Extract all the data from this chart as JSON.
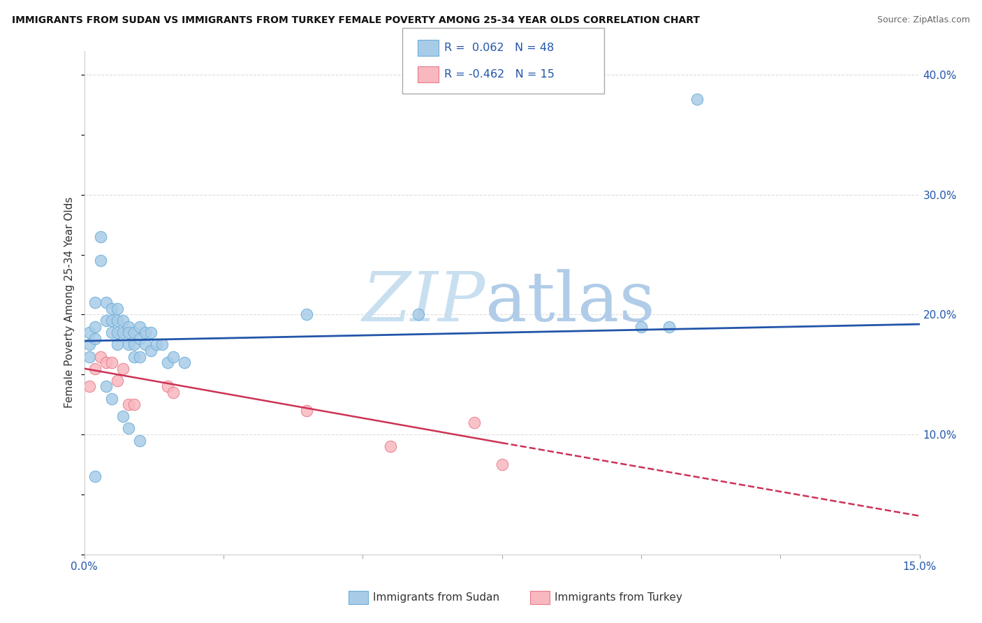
{
  "title": "IMMIGRANTS FROM SUDAN VS IMMIGRANTS FROM TURKEY FEMALE POVERTY AMONG 25-34 YEAR OLDS CORRELATION CHART",
  "source": "Source: ZipAtlas.com",
  "ylabel": "Female Poverty Among 25-34 Year Olds",
  "xlim": [
    0.0,
    0.15
  ],
  "ylim": [
    0.0,
    0.42
  ],
  "xticks": [
    0.0,
    0.025,
    0.05,
    0.075,
    0.1,
    0.125,
    0.15
  ],
  "yticks": [
    0.1,
    0.2,
    0.3,
    0.4
  ],
  "ytick_labels": [
    "10.0%",
    "20.0%",
    "30.0%",
    "40.0%"
  ],
  "xtick_labels": [
    "0.0%",
    "",
    "",
    "",
    "",
    "",
    "15.0%"
  ],
  "sudan_color": "#a8cce8",
  "sudan_edge_color": "#6baed6",
  "turkey_color": "#f9b8bf",
  "turkey_edge_color": "#e87a8a",
  "sudan_line_color": "#2255aa",
  "turkey_line_color": "#cc3355",
  "sudan_R": 0.062,
  "sudan_N": 48,
  "turkey_R": -0.462,
  "turkey_N": 15,
  "sudan_points": [
    [
      0.001,
      0.185
    ],
    [
      0.001,
      0.175
    ],
    [
      0.001,
      0.165
    ],
    [
      0.002,
      0.21
    ],
    [
      0.002,
      0.19
    ],
    [
      0.002,
      0.18
    ],
    [
      0.003,
      0.265
    ],
    [
      0.003,
      0.245
    ],
    [
      0.004,
      0.21
    ],
    [
      0.004,
      0.195
    ],
    [
      0.005,
      0.205
    ],
    [
      0.005,
      0.195
    ],
    [
      0.005,
      0.185
    ],
    [
      0.006,
      0.205
    ],
    [
      0.006,
      0.195
    ],
    [
      0.006,
      0.185
    ],
    [
      0.006,
      0.175
    ],
    [
      0.007,
      0.195
    ],
    [
      0.007,
      0.185
    ],
    [
      0.008,
      0.19
    ],
    [
      0.008,
      0.185
    ],
    [
      0.008,
      0.175
    ],
    [
      0.009,
      0.185
    ],
    [
      0.009,
      0.175
    ],
    [
      0.009,
      0.165
    ],
    [
      0.01,
      0.19
    ],
    [
      0.01,
      0.18
    ],
    [
      0.01,
      0.165
    ],
    [
      0.011,
      0.185
    ],
    [
      0.011,
      0.175
    ],
    [
      0.012,
      0.185
    ],
    [
      0.012,
      0.17
    ],
    [
      0.013,
      0.175
    ],
    [
      0.014,
      0.175
    ],
    [
      0.015,
      0.16
    ],
    [
      0.016,
      0.165
    ],
    [
      0.018,
      0.16
    ],
    [
      0.04,
      0.2
    ],
    [
      0.06,
      0.2
    ],
    [
      0.1,
      0.19
    ],
    [
      0.105,
      0.19
    ],
    [
      0.11,
      0.38
    ],
    [
      0.002,
      0.065
    ],
    [
      0.004,
      0.14
    ],
    [
      0.005,
      0.13
    ],
    [
      0.007,
      0.115
    ],
    [
      0.008,
      0.105
    ],
    [
      0.01,
      0.095
    ]
  ],
  "turkey_points": [
    [
      0.001,
      0.14
    ],
    [
      0.002,
      0.155
    ],
    [
      0.003,
      0.165
    ],
    [
      0.004,
      0.16
    ],
    [
      0.005,
      0.16
    ],
    [
      0.006,
      0.145
    ],
    [
      0.007,
      0.155
    ],
    [
      0.008,
      0.125
    ],
    [
      0.009,
      0.125
    ],
    [
      0.015,
      0.14
    ],
    [
      0.016,
      0.135
    ],
    [
      0.04,
      0.12
    ],
    [
      0.055,
      0.09
    ],
    [
      0.07,
      0.11
    ],
    [
      0.075,
      0.075
    ]
  ],
  "background_color": "#ffffff",
  "watermark_zip": "ZIP",
  "watermark_atlas": "atlas",
  "watermark_color_zip": "#c8dff0",
  "watermark_color_atlas": "#b0cce8",
  "grid_color": "#dddddd",
  "legend_sudan_label": "R =  0.062   N = 48",
  "legend_turkey_label": "R = -0.462   N = 15",
  "bottom_legend_sudan": "Immigrants from Sudan",
  "bottom_legend_turkey": "Immigrants from Turkey"
}
